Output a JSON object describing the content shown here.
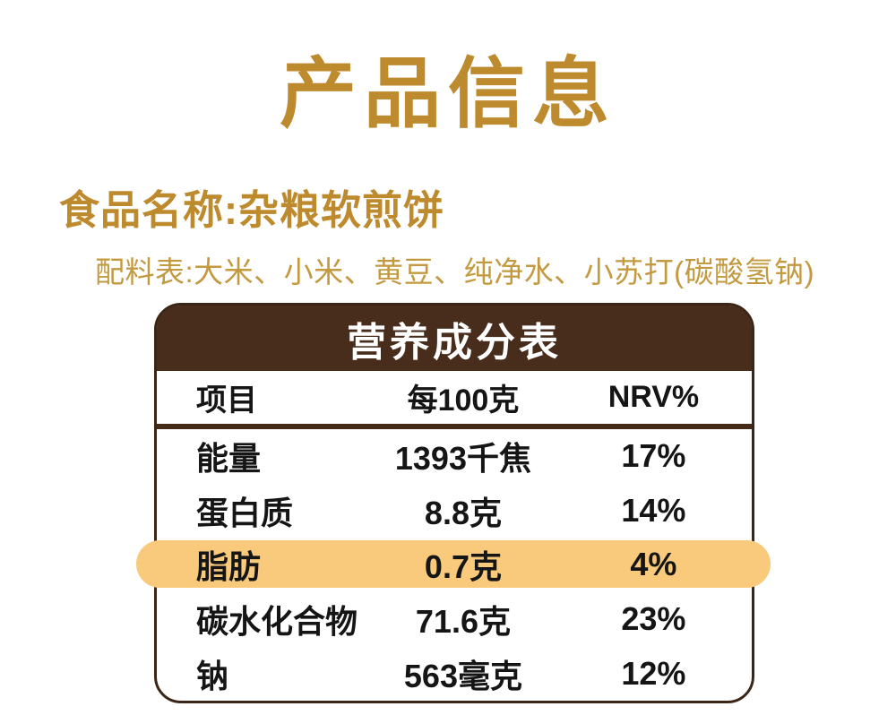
{
  "page": {
    "title": "产品信息",
    "food_name_line": "食品名称:杂粮软煎饼",
    "ingredients_line": "配料表:大米、小米、黄豆、纯净水、小苏打(碳酸氢钠)"
  },
  "nutrition_table": {
    "title": "营养成分表",
    "columns": [
      "项目",
      "每100克",
      "NRV%"
    ],
    "rows": [
      {
        "item": "能量",
        "per100g": "1393千焦",
        "nrv": "17%",
        "highlight": false
      },
      {
        "item": "蛋白质",
        "per100g": "8.8克",
        "nrv": "14%",
        "highlight": false
      },
      {
        "item": "脂肪",
        "per100g": "0.7克",
        "nrv": "4%",
        "highlight": true
      },
      {
        "item": "碳水化合物",
        "per100g": "71.6克",
        "nrv": "23%",
        "highlight": false
      },
      {
        "item": "钠",
        "per100g": "563毫克",
        "nrv": "12%",
        "highlight": false
      }
    ]
  },
  "colors": {
    "title_gold": "#BE8A2E",
    "ingredients_gold": "#C39A40",
    "table_header_bg": "#482D1D",
    "table_border": "#3B2516",
    "highlight_pill": "#F9CA7B",
    "table_text": "#151515",
    "background": "#FFFFFF"
  }
}
